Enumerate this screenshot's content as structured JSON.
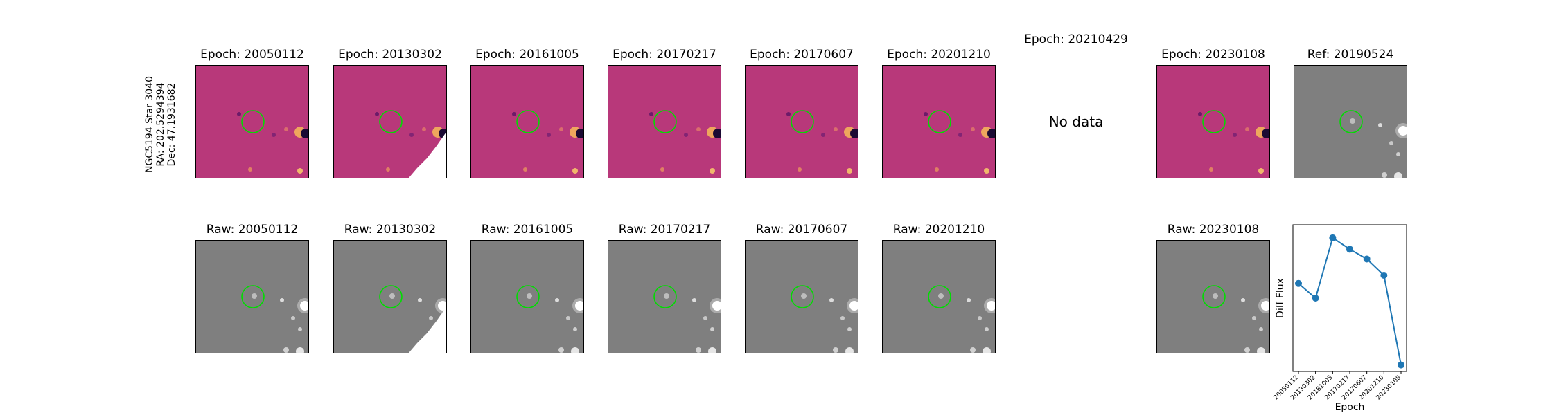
{
  "object_label": [
    "NGC5194 Star 3040",
    "RA: 202.5294394",
    "Dec: 47.1931682"
  ],
  "diff_row": [
    {
      "title": "Epoch: 20050112",
      "type": "diff"
    },
    {
      "title": "Epoch: 20130302",
      "type": "diff",
      "masked": true
    },
    {
      "title": "Epoch: 20161005",
      "type": "diff"
    },
    {
      "title": "Epoch: 20170217",
      "type": "diff"
    },
    {
      "title": "Epoch: 20170607",
      "type": "diff"
    },
    {
      "title": "Epoch: 20201210",
      "type": "diff"
    },
    {
      "title": "Epoch: 20210429",
      "type": "nodata",
      "text": "No data"
    },
    {
      "title": "Epoch: 20230108",
      "type": "diff"
    },
    {
      "title": "Ref: 20190524",
      "type": "raw"
    }
  ],
  "raw_row": [
    {
      "title": "Raw: 20050112"
    },
    {
      "title": "Raw: 20130302",
      "masked": true
    },
    {
      "title": "Raw: 20161005"
    },
    {
      "title": "Raw: 20170217"
    },
    {
      "title": "Raw: 20170607"
    },
    {
      "title": "Raw: 20201210"
    },
    {
      "title": "",
      "empty": true
    },
    {
      "title": "Raw: 20230108"
    }
  ],
  "colors": {
    "diff_background": "#b8387a",
    "raw_background": "#7f7f7f",
    "aperture": "#00dd00",
    "line": "#1f77b4"
  },
  "chart_data": {
    "type": "line",
    "xlabel": "Epoch",
    "ylabel": "Diff Flux",
    "categories": [
      "20050112",
      "20130302",
      "20161005",
      "20170217",
      "20170607",
      "20201210",
      "20230108"
    ],
    "values": [
      0.42,
      0.33,
      0.7,
      0.63,
      0.57,
      0.47,
      -0.08
    ],
    "ylim": [
      -0.12,
      0.78
    ],
    "yticks_shown": false,
    "grid": false,
    "marker": "circle"
  }
}
